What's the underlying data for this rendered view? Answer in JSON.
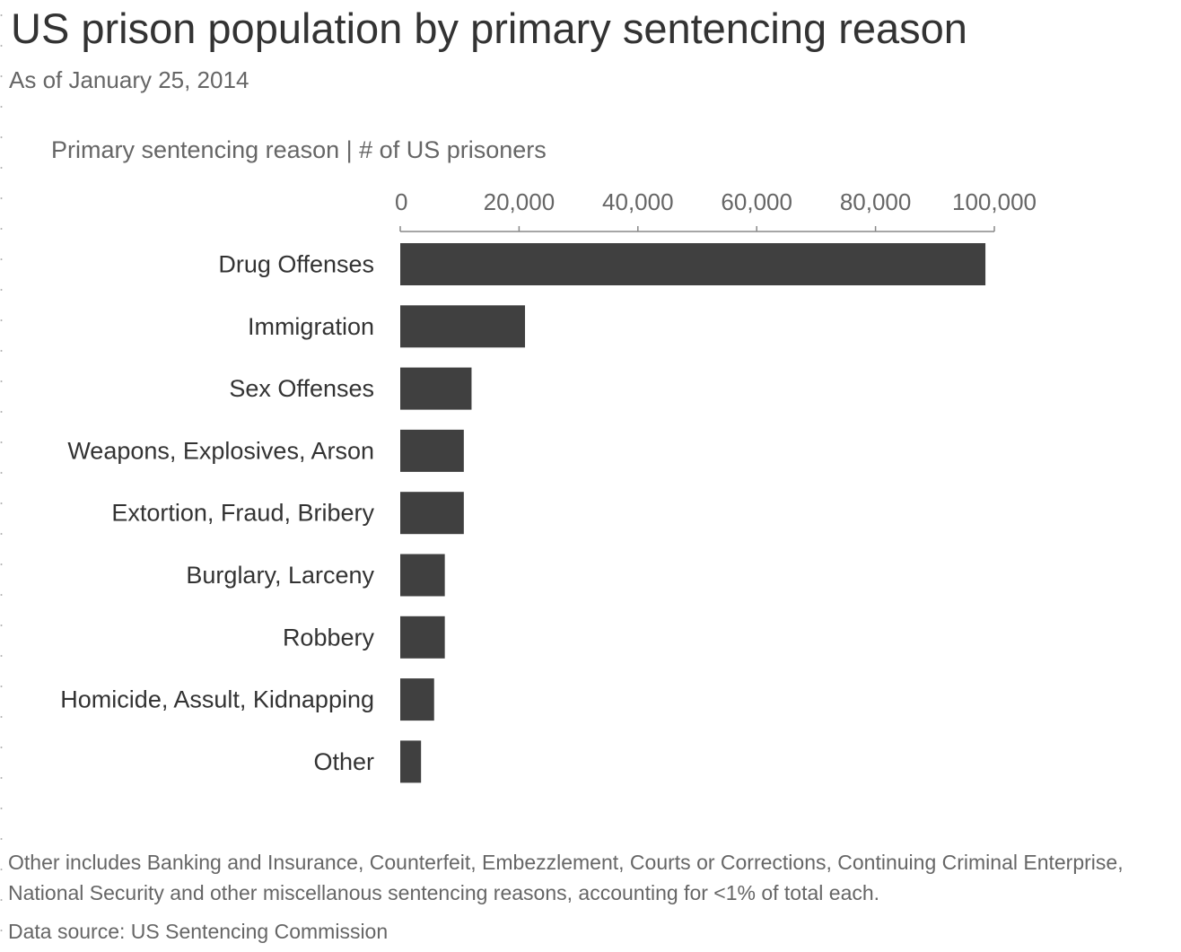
{
  "title": "US prison population by primary sentencing reason",
  "subtitle": "As of January 25, 2014",
  "header_label": "Primary sentencing reason | # of US prisoners",
  "footnote": "Other includes Banking and Insurance, Counterfeit, Embezzlement, Courts or Corrections, Continuing Criminal Enterprise, National Security and other miscellanous sentencing reasons, accounting for <1% of total each.",
  "source": "Data source: US Sentencing Commission",
  "colors": {
    "bar": "#404040",
    "axis": "#888888",
    "text": "#333333",
    "muted": "#666666"
  },
  "chart_data": {
    "type": "bar",
    "orientation": "horizontal",
    "categories": [
      "Drug Offenses",
      "Immigration",
      "Sex Offenses",
      "Weapons, Explosives, Arson",
      "Extortion, Fraud, Bribery",
      "Burglary, Larceny",
      "Robbery",
      "Homicide, Assult, Kidnapping",
      "Other"
    ],
    "values": [
      98500,
      21000,
      12000,
      10700,
      10700,
      7500,
      7500,
      5700,
      3500
    ],
    "xlim": [
      0,
      100000
    ],
    "x_ticks": [
      0,
      20000,
      40000,
      60000,
      80000,
      100000
    ],
    "x_tick_labels": [
      "0",
      "20,000",
      "40,000",
      "60,000",
      "80,000",
      "100,000"
    ],
    "axis_position": "top",
    "grid": false,
    "legend": "none"
  }
}
